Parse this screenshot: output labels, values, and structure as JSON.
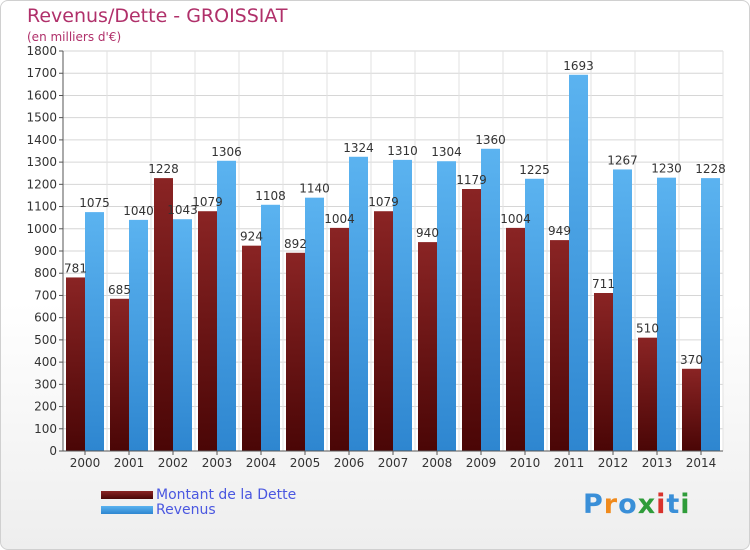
{
  "title": "Revenus/Dette - GROISSIAT",
  "subtitle": "(en milliers d'€)",
  "legend": {
    "debt_label": "Montant de la Dette",
    "revenue_label": "Revenus"
  },
  "logo": {
    "letters": [
      "P",
      "r",
      "o",
      "x",
      "i",
      "t",
      "i"
    ],
    "colors": [
      "#3a8fd8",
      "#f08a1c",
      "#3a8fd8",
      "#2f9c3a",
      "#d8322c",
      "#3a8fd8",
      "#2f9c3a"
    ]
  },
  "colors": {
    "debt": "#7a1c1c",
    "revenue": "#4aa3e8",
    "title": "#b0306a",
    "legend_text": "#4a57e0"
  },
  "chart_data": {
    "type": "bar",
    "categories": [
      "2000",
      "2001",
      "2002",
      "2003",
      "2004",
      "2005",
      "2006",
      "2007",
      "2008",
      "2009",
      "2010",
      "2011",
      "2012",
      "2013",
      "2014"
    ],
    "series": [
      {
        "name": "Montant de la Dette",
        "values": [
          781,
          685,
          1228,
          1079,
          924,
          892,
          1004,
          1079,
          940,
          1179,
          1004,
          949,
          711,
          510,
          370
        ],
        "labels": [
          "781",
          "685",
          "1228",
          "1079",
          "924",
          "892",
          "1004",
          "1079",
          "940",
          "1179",
          "1004",
          "949",
          "711",
          "510",
          "370"
        ]
      },
      {
        "name": "Revenus",
        "values": [
          1075,
          1040,
          1043,
          1306,
          1108,
          1140,
          1324,
          1310,
          1304,
          1360,
          1225,
          1693,
          1267,
          1230,
          1228
        ],
        "labels": [
          "1075",
          "1040",
          "1043",
          "1306",
          "1108",
          "1140",
          "1324",
          "1310",
          "1304",
          "1360",
          "1225",
          "1693",
          "1267",
          "1230",
          "1228"
        ]
      }
    ],
    "ylim": [
      0,
      1800
    ],
    "yticks": [
      "0",
      "100",
      "200",
      "300",
      "400",
      "500",
      "600",
      "700",
      "800",
      "900",
      "1000",
      "1100",
      "1200",
      "1300",
      "1400",
      "1500",
      "1600",
      "1700",
      "1800"
    ],
    "grid": true,
    "legend_position": "bottom-left"
  }
}
